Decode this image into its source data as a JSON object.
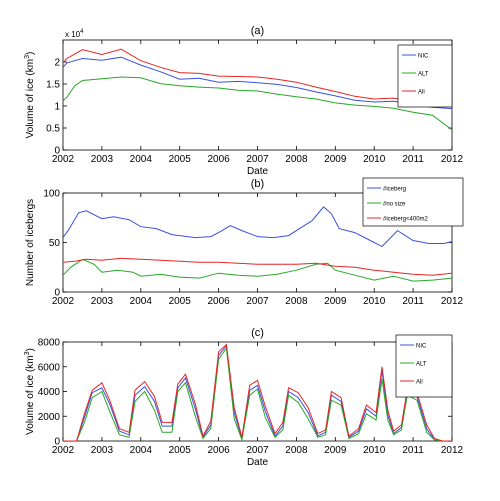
{
  "chart_data": [
    {
      "type": "line",
      "title": "(a)",
      "xlabel": "Date",
      "ylabel": "Volume of ice (km",
      "ylabel_sup": "3",
      "ylabel_end": ")",
      "ylim": [
        0,
        25000
      ],
      "xlim": [
        2002,
        2012
      ],
      "exponent_label": "x 10",
      "exponent_sup": "4",
      "yticks": [
        0,
        5000,
        10000,
        15000,
        20000
      ],
      "ytick_labels": [
        "0",
        "0.5",
        "1",
        "1.5",
        "2"
      ],
      "xticks": [
        2002,
        2003,
        2004,
        2005,
        2006,
        2007,
        2008,
        2009,
        2010,
        2011,
        2012
      ],
      "legend_position": "top-right",
      "series": [
        {
          "name": "NIC",
          "color": "#3a50e6",
          "x": [
            2002,
            2002.1,
            2002.3,
            2002.5,
            2003,
            2003.5,
            2004,
            2004.5,
            2005,
            2005.5,
            2006,
            2006.5,
            2007,
            2007.5,
            2008,
            2008.5,
            2009,
            2009.5,
            2010,
            2010.5,
            2011,
            2011.5,
            2012
          ],
          "y": [
            18800,
            19800,
            20300,
            20800,
            20400,
            21100,
            19300,
            17800,
            16100,
            16300,
            15400,
            15600,
            15300,
            14900,
            14200,
            13200,
            12300,
            11300,
            10900,
            11100,
            10400,
            9700,
            9400
          ]
        },
        {
          "name": "ALT",
          "color": "#27a827",
          "x": [
            2002,
            2002.1,
            2002.3,
            2002.5,
            2003,
            2003.5,
            2004,
            2004.5,
            2005,
            2005.5,
            2006,
            2006.5,
            2007,
            2007.5,
            2008,
            2008.5,
            2009,
            2009.5,
            2010,
            2010.5,
            2011,
            2011.5,
            2012
          ],
          "y": [
            11200,
            12000,
            14600,
            15800,
            16200,
            16600,
            16400,
            15100,
            14600,
            14300,
            14100,
            13600,
            13400,
            12700,
            12100,
            11600,
            10700,
            10200,
            9900,
            9500,
            8600,
            7900,
            4600
          ]
        },
        {
          "name": "All",
          "color": "#e62525",
          "x": [
            2002,
            2002.1,
            2002.3,
            2002.5,
            2003,
            2003.5,
            2004,
            2004.5,
            2005,
            2005.5,
            2006,
            2006.5,
            2007,
            2007.5,
            2008,
            2008.5,
            2009,
            2009.5,
            2010,
            2010.5,
            2011,
            2011.5,
            2012
          ],
          "y": [
            19800,
            20800,
            21800,
            22800,
            21700,
            22900,
            20300,
            18800,
            17600,
            17400,
            16800,
            16700,
            16600,
            16100,
            15400,
            14300,
            13300,
            12200,
            11600,
            11800,
            11000,
            10600,
            10300
          ]
        }
      ]
    },
    {
      "type": "line",
      "title": "(b)",
      "xlabel": "",
      "ylabel": "Number of icebergs",
      "ylim": [
        0,
        100
      ],
      "xlim": [
        2002,
        2012
      ],
      "yticks": [
        0,
        50,
        100
      ],
      "ytick_labels": [
        "0",
        "50",
        "100"
      ],
      "xticks": [
        2002,
        2003,
        2004,
        2005,
        2006,
        2007,
        2008,
        2009,
        2010,
        2011,
        2012
      ],
      "legend_position": "top-right",
      "series": [
        {
          "name": "#iceberg",
          "color": "#3a50e6",
          "x": [
            2002,
            2002.15,
            2002.4,
            2002.6,
            2003,
            2003.3,
            2003.7,
            2004,
            2004.4,
            2004.8,
            2005,
            2005.4,
            2005.8,
            2006,
            2006.3,
            2006.6,
            2007,
            2007.4,
            2007.8,
            2008,
            2008.4,
            2008.7,
            2008.9,
            2009.1,
            2009.5,
            2009.9,
            2010.2,
            2010.6,
            2011,
            2011.4,
            2011.8,
            2012
          ],
          "y": [
            55,
            63,
            80,
            82,
            74,
            76,
            73,
            66,
            64,
            58,
            57,
            55,
            56,
            60,
            67,
            62,
            56,
            55,
            57,
            62,
            72,
            86,
            79,
            64,
            60,
            52,
            46,
            62,
            52,
            49,
            49,
            51
          ]
        },
        {
          "name": "#no size",
          "color": "#27a827",
          "x": [
            2002,
            2002.2,
            2002.5,
            2002.8,
            2003,
            2003.4,
            2003.8,
            2004,
            2004.5,
            2005,
            2005.5,
            2006,
            2006.5,
            2007,
            2007.5,
            2008,
            2008.5,
            2008.8,
            2009,
            2009.5,
            2010,
            2010.5,
            2011,
            2011.5,
            2012
          ],
          "y": [
            17,
            25,
            33,
            28,
            20,
            22,
            20,
            16,
            18,
            15,
            14,
            19,
            17,
            16,
            18,
            22,
            28,
            29,
            22,
            17,
            12,
            16,
            11,
            12,
            14
          ]
        },
        {
          "name": "#iceberg<400m2",
          "color": "#e62525",
          "x": [
            2002,
            2002.3,
            2002.6,
            2003,
            2003.5,
            2004,
            2004.5,
            2005,
            2005.5,
            2006,
            2006.5,
            2007,
            2007.5,
            2008,
            2008.5,
            2009,
            2009.5,
            2010,
            2010.5,
            2011,
            2011.5,
            2012
          ],
          "y": [
            30,
            31,
            33,
            32,
            34,
            33,
            32,
            31,
            30,
            30,
            29,
            28,
            28,
            28,
            29,
            26,
            25,
            22,
            20,
            18,
            17,
            19
          ]
        }
      ]
    },
    {
      "type": "line",
      "title": "(c)",
      "xlabel": "Date",
      "ylabel": "Volume of ice (km",
      "ylabel_sup": "3",
      "ylabel_end": ")",
      "ylim": [
        0,
        8000
      ],
      "xlim": [
        2002,
        2012
      ],
      "yticks": [
        0,
        2000,
        4000,
        6000,
        8000
      ],
      "ytick_labels": [
        "0",
        "2000",
        "4000",
        "6000",
        "8000"
      ],
      "xticks": [
        2002,
        2003,
        2004,
        2005,
        2006,
        2007,
        2008,
        2009,
        2010,
        2011,
        2012
      ],
      "legend_position": "top-right",
      "series": [
        {
          "name": "NIC",
          "color": "#3a50e6",
          "x": [
            2002,
            2002.35,
            2002.55,
            2002.75,
            2003.0,
            2003.2,
            2003.45,
            2003.7,
            2003.85,
            2004.1,
            2004.35,
            2004.55,
            2004.8,
            2004.95,
            2005.15,
            2005.4,
            2005.6,
            2005.8,
            2006.0,
            2006.2,
            2006.4,
            2006.6,
            2006.8,
            2007.0,
            2007.2,
            2007.45,
            2007.65,
            2007.8,
            2008.05,
            2008.3,
            2008.55,
            2008.75,
            2008.9,
            2009.15,
            2009.35,
            2009.6,
            2009.8,
            2010.05,
            2010.2,
            2010.35,
            2010.5,
            2010.7,
            2010.85,
            2011.1,
            2011.35,
            2011.55,
            2011.75,
            2012
          ],
          "y": [
            0,
            0,
            1900,
            3900,
            4300,
            3000,
            800,
            500,
            3700,
            4400,
            3200,
            1200,
            1200,
            4300,
            5100,
            2600,
            300,
            1300,
            6900,
            7700,
            2300,
            200,
            4100,
            4500,
            2400,
            400,
            1200,
            4000,
            3500,
            2300,
            400,
            700,
            3700,
            3200,
            300,
            800,
            2600,
            2000,
            5700,
            2100,
            600,
            1100,
            4000,
            3600,
            1000,
            100,
            0,
            0
          ]
        },
        {
          "name": "ALT",
          "color": "#27a827",
          "x": [
            2002,
            2002.35,
            2002.55,
            2002.75,
            2003.0,
            2003.2,
            2003.45,
            2003.7,
            2003.85,
            2004.1,
            2004.35,
            2004.55,
            2004.8,
            2004.95,
            2005.15,
            2005.4,
            2005.6,
            2005.8,
            2006.0,
            2006.2,
            2006.4,
            2006.6,
            2006.8,
            2007.0,
            2007.2,
            2007.45,
            2007.65,
            2007.8,
            2008.05,
            2008.3,
            2008.55,
            2008.75,
            2008.9,
            2009.15,
            2009.35,
            2009.6,
            2009.8,
            2010.05,
            2010.2,
            2010.35,
            2010.5,
            2010.7,
            2010.85,
            2011.1,
            2011.35,
            2011.55,
            2011.75,
            2012
          ],
          "y": [
            0,
            0,
            1500,
            3500,
            4000,
            2400,
            500,
            300,
            3200,
            4000,
            2500,
            700,
            700,
            4000,
            4700,
            2000,
            200,
            1000,
            6600,
            7500,
            1800,
            100,
            3700,
            4200,
            1900,
            300,
            900,
            3700,
            3100,
            1800,
            300,
            500,
            3300,
            2900,
            200,
            600,
            2200,
            1700,
            5000,
            1700,
            500,
            900,
            3700,
            3300,
            700,
            100,
            0,
            0
          ]
        },
        {
          "name": "All",
          "color": "#e62525",
          "x": [
            2002,
            2002.35,
            2002.55,
            2002.75,
            2003.0,
            2003.2,
            2003.45,
            2003.7,
            2003.85,
            2004.1,
            2004.35,
            2004.55,
            2004.8,
            2004.95,
            2005.15,
            2005.4,
            2005.6,
            2005.8,
            2006.0,
            2006.2,
            2006.4,
            2006.6,
            2006.8,
            2007.0,
            2007.2,
            2007.45,
            2007.65,
            2007.8,
            2008.05,
            2008.3,
            2008.55,
            2008.75,
            2008.9,
            2009.15,
            2009.35,
            2009.6,
            2009.8,
            2010.05,
            2010.2,
            2010.35,
            2010.5,
            2010.7,
            2010.85,
            2011.1,
            2011.35,
            2011.55,
            2011.75,
            2012
          ],
          "y": [
            0,
            0,
            2200,
            4100,
            4700,
            3300,
            1000,
            700,
            4100,
            4800,
            3600,
            1500,
            1500,
            4600,
            5400,
            3000,
            400,
            1600,
            7200,
            7800,
            2700,
            300,
            4500,
            4900,
            2800,
            600,
            1500,
            4300,
            3900,
            2700,
            600,
            900,
            4000,
            3500,
            400,
            1000,
            2900,
            2300,
            6000,
            2500,
            800,
            1300,
            4200,
            3900,
            1300,
            200,
            0,
            0
          ]
        }
      ]
    }
  ]
}
